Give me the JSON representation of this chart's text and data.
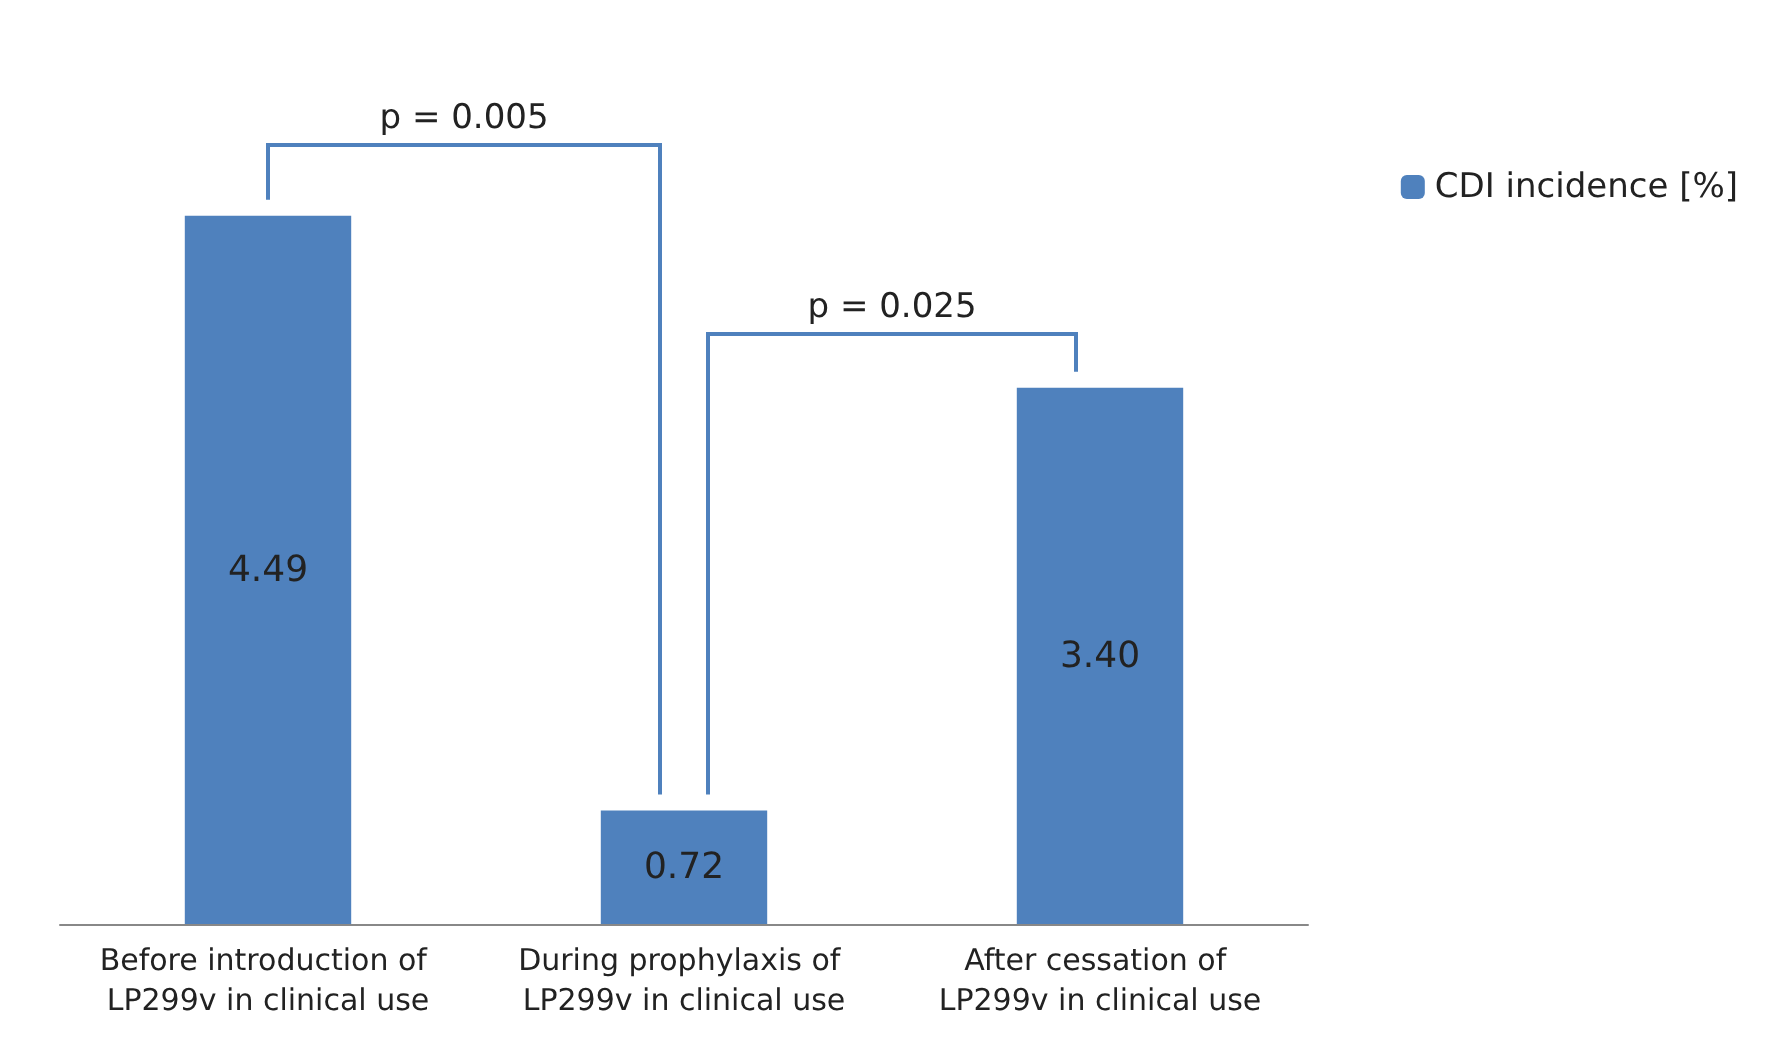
{
  "chart_data": {
    "type": "bar",
    "categories": [
      "Before introduction of LP299v in clinical use",
      "During prophylaxis of LP299v in clinical use",
      "After cessation of LP299v in clinical use"
    ],
    "series": [
      {
        "name": "CDI incidence [%]",
        "color": "#4f81bd",
        "values": [
          4.49,
          0.72,
          3.4
        ],
        "value_labels": [
          "4.49",
          "0.72",
          "3.40"
        ]
      }
    ],
    "annotations": [
      "p = 0.005",
      "p = 0.025"
    ],
    "legend": "right",
    "grid": false
  }
}
